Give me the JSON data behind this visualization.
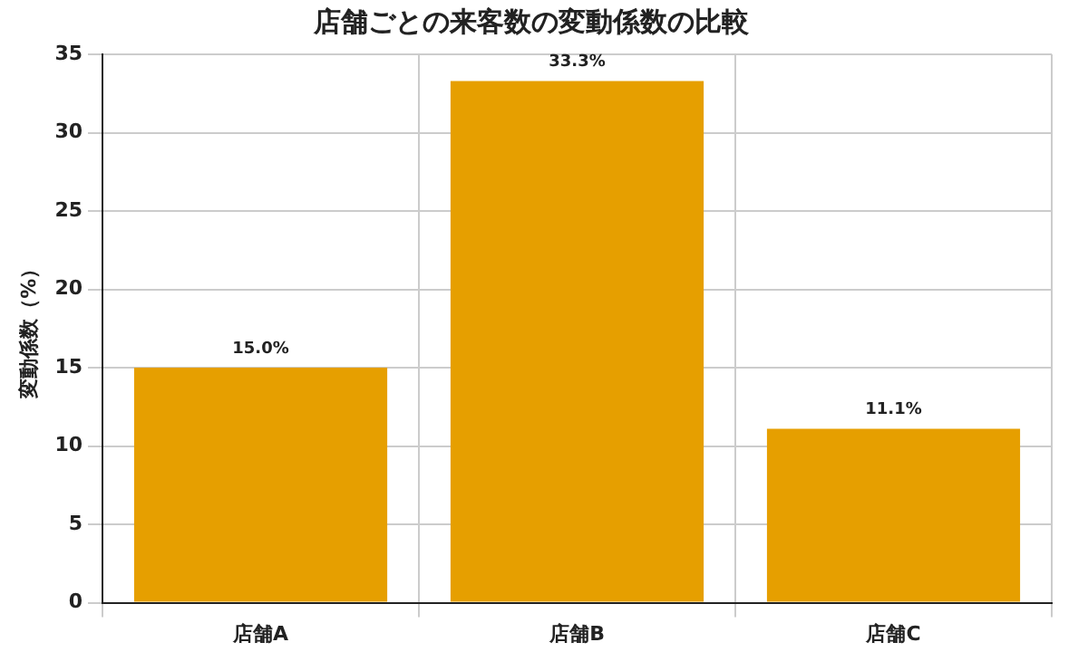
{
  "chart_data": {
    "type": "bar",
    "title": "店舗ごとの来客数の変動係数の比較",
    "ylabel": "変動係数（%）",
    "categories": [
      "店舗A",
      "店舗B",
      "店舗C"
    ],
    "values": [
      15.0,
      33.3,
      11.1
    ],
    "value_labels": [
      "15.0%",
      "33.3%",
      "11.1%"
    ],
    "color": "#e69f00",
    "ylim": [
      0,
      35
    ],
    "yticks": [
      0,
      5,
      10,
      15,
      20,
      25,
      30,
      35
    ],
    "grid": true
  }
}
